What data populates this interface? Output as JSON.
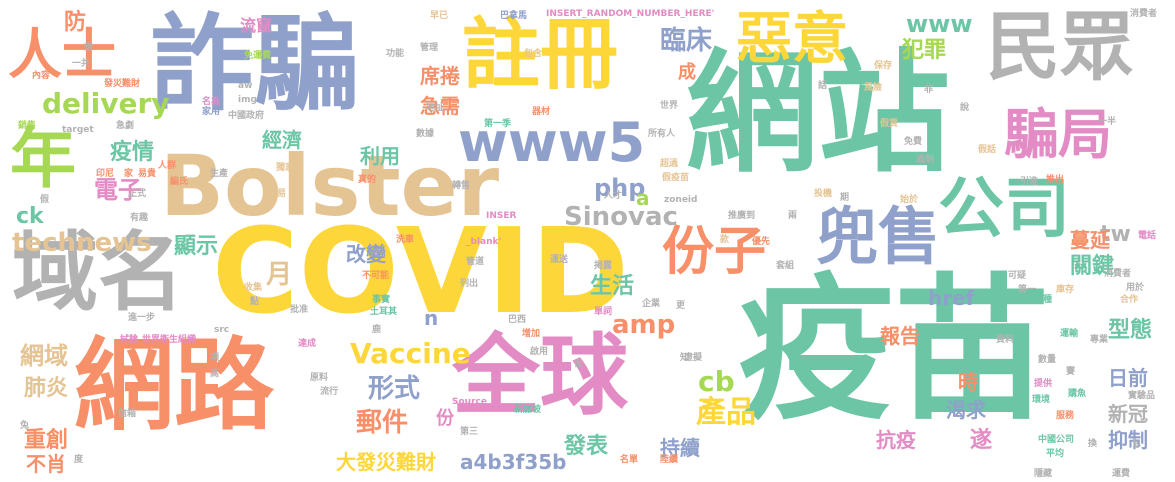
{
  "palette": {
    "teal": "#6cc6a6",
    "blue": "#8fa0cb",
    "yellow": "#fdd739",
    "orange": "#f78f69",
    "gray": "#b2b2b2",
    "pink": "#e38bc4",
    "green": "#a6d854",
    "tan": "#e5c494"
  },
  "words": [
    {
      "text": "疫苗",
      "color": "teal"
    },
    {
      "text": "網站",
      "color": "teal"
    },
    {
      "text": "COVID",
      "color": "yellow"
    },
    {
      "text": "Bolster",
      "color": "tan"
    },
    {
      "text": "詐騙",
      "color": "blue"
    },
    {
      "text": "網路",
      "color": "orange"
    },
    {
      "text": "全球",
      "color": "pink"
    },
    {
      "text": "註冊",
      "color": "yellow"
    },
    {
      "text": "民眾",
      "color": "gray"
    },
    {
      "text": "域名",
      "color": "gray"
    },
    {
      "text": "兜售",
      "color": "blue"
    },
    {
      "text": "公司",
      "color": "teal"
    },
    {
      "text": "份子",
      "color": "orange"
    },
    {
      "text": "騙局",
      "color": "pink"
    },
    {
      "text": "惡意",
      "color": "yellow"
    },
    {
      "text": "人士",
      "color": "orange"
    },
    {
      "text": "年",
      "color": "green"
    },
    {
      "text": "www5",
      "color": "blue"
    },
    {
      "text": "Vaccine",
      "color": "yellow"
    },
    {
      "text": "Sinovac",
      "color": "gray"
    },
    {
      "text": "technews",
      "color": "tan"
    },
    {
      "text": "delivery",
      "color": "green"
    },
    {
      "text": "臨床",
      "color": "blue"
    },
    {
      "text": "www",
      "color": "teal"
    },
    {
      "text": "犯罪",
      "color": "green"
    },
    {
      "text": "疫情",
      "color": "teal"
    },
    {
      "text": "電子",
      "color": "pink"
    },
    {
      "text": "形式",
      "color": "blue"
    },
    {
      "text": "郵件",
      "color": "orange"
    },
    {
      "text": "產品",
      "color": "yellow"
    },
    {
      "text": "發表",
      "color": "teal"
    },
    {
      "text": "持續",
      "color": "blue"
    },
    {
      "text": "大發災難財",
      "color": "yellow"
    },
    {
      "text": "a4b3f35b",
      "color": "blue"
    },
    {
      "text": "抗疫",
      "color": "pink"
    },
    {
      "text": "渴求",
      "color": "blue"
    },
    {
      "text": "報告",
      "color": "orange"
    },
    {
      "text": "型態",
      "color": "teal"
    },
    {
      "text": "關鍵",
      "color": "teal"
    },
    {
      "text": "日前",
      "color": "blue"
    },
    {
      "text": "新冠",
      "color": "gray"
    },
    {
      "text": "抑制",
      "color": "blue"
    },
    {
      "text": "網域",
      "color": "tan"
    },
    {
      "text": "肺炎",
      "color": "tan"
    },
    {
      "text": "重創",
      "color": "orange"
    },
    {
      "text": "不肖",
      "color": "orange"
    },
    {
      "text": "生活",
      "color": "teal"
    },
    {
      "text": "改變",
      "color": "blue"
    },
    {
      "text": "利用",
      "color": "teal"
    },
    {
      "text": "經濟",
      "color": "teal"
    },
    {
      "text": "顯示",
      "color": "teal"
    },
    {
      "text": "席捲",
      "color": "orange"
    },
    {
      "text": "急需",
      "color": "orange"
    },
    {
      "text": "流竄",
      "color": "pink"
    },
    {
      "text": "防",
      "color": "orange"
    },
    {
      "text": "php",
      "color": "blue"
    },
    {
      "text": "amp",
      "color": "orange"
    },
    {
      "text": "cb",
      "color": "green"
    },
    {
      "text": "ck",
      "color": "teal"
    },
    {
      "text": "tw",
      "color": "gray"
    },
    {
      "text": "href",
      "color": "blue"
    },
    {
      "text": "月",
      "color": "tan"
    },
    {
      "text": "成",
      "color": "orange"
    },
    {
      "text": "遂",
      "color": "pink"
    },
    {
      "text": "蔓延",
      "color": "orange"
    },
    {
      "text": "時",
      "color": "orange"
    },
    {
      "text": "份",
      "color": "pink"
    },
    {
      "text": "a",
      "color": "green"
    },
    {
      "text": "n",
      "color": "blue"
    },
    {
      "text": "INSERT_RANDOM_NUMBER_HERE'",
      "color": "pink"
    },
    {
      "text": "巴拿馬",
      "color": "blue"
    },
    {
      "text": "早已",
      "color": "tan"
    },
    {
      "text": "消費者",
      "color": "gray"
    },
    {
      "text": "保存",
      "color": "tan"
    },
    {
      "text": "風險",
      "color": "tan"
    },
    {
      "text": "管理",
      "color": "gray"
    },
    {
      "text": "包含",
      "color": "tan"
    },
    {
      "text": "一共",
      "color": "gray"
    },
    {
      "text": "發災難財",
      "color": "orange"
    },
    {
      "text": "內容",
      "color": "orange"
    },
    {
      "text": "想",
      "color": "gray"
    },
    {
      "text": "免運費",
      "color": "green"
    },
    {
      "text": "名為",
      "color": "pink"
    },
    {
      "text": "家用",
      "color": "blue"
    },
    {
      "text": "銷售",
      "color": "green"
    },
    {
      "text": "target",
      "color": "gray"
    },
    {
      "text": "急劇",
      "color": "gray"
    },
    {
      "text": "第一季",
      "color": "teal"
    },
    {
      "text": "所有人",
      "color": "gray"
    },
    {
      "text": "中國政府",
      "color": "gray"
    },
    {
      "text": "世界",
      "color": "gray"
    },
    {
      "text": "器材",
      "color": "orange"
    },
    {
      "text": "地址",
      "color": "gray"
    },
    {
      "text": "數據",
      "color": "gray"
    },
    {
      "text": "功能",
      "color": "gray"
    },
    {
      "text": "人群",
      "color": "orange"
    },
    {
      "text": "編氏",
      "color": "orange"
    },
    {
      "text": "印尼",
      "color": "orange"
    },
    {
      "text": "家",
      "color": "orange"
    },
    {
      "text": "易貴",
      "color": "orange"
    },
    {
      "text": "生產",
      "color": "gray"
    },
    {
      "text": "獨家",
      "color": "tan"
    },
    {
      "text": "正式",
      "color": "gray"
    },
    {
      "text": "交易",
      "color": "tan"
    },
    {
      "text": "真的",
      "color": "orange"
    },
    {
      "text": "轉售",
      "color": "gray"
    },
    {
      "text": "超過",
      "color": "tan"
    },
    {
      "text": "假疫苗",
      "color": "tan"
    },
    {
      "text": "人才",
      "color": "gray"
    },
    {
      "text": "zoneid",
      "color": "gray"
    },
    {
      "text": "有趣",
      "color": "gray"
    },
    {
      "text": "假",
      "color": "gray"
    },
    {
      "text": "INSER",
      "color": "pink"
    },
    {
      "text": "推廣到",
      "color": "gray"
    },
    {
      "text": "兩",
      "color": "gray"
    },
    {
      "text": "優先",
      "color": "orange"
    },
    {
      "text": "款",
      "color": "tan"
    },
    {
      "text": "掲露",
      "color": "gray"
    },
    {
      "text": "洗車",
      "color": "orange"
    },
    {
      "text": "運送",
      "color": "gray"
    },
    {
      "text": "管道",
      "color": "gray"
    },
    {
      "text": "_blank'",
      "color": "pink"
    },
    {
      "text": "套組",
      "color": "gray"
    },
    {
      "text": "不可能",
      "color": "orange"
    },
    {
      "text": "收集",
      "color": "tan"
    },
    {
      "text": "點",
      "color": "gray"
    },
    {
      "text": "事實",
      "color": "teal"
    },
    {
      "text": "土耳其",
      "color": "teal"
    },
    {
      "text": "列出",
      "color": "gray"
    },
    {
      "text": "批准",
      "color": "gray"
    },
    {
      "text": "src",
      "color": "gray"
    },
    {
      "text": "單詞",
      "color": "pink"
    },
    {
      "text": "巴西",
      "color": "gray"
    },
    {
      "text": "企業",
      "color": "gray"
    },
    {
      "text": "更",
      "color": "gray"
    },
    {
      "text": "增加",
      "color": "orange"
    },
    {
      "text": "啟用",
      "color": "gray"
    },
    {
      "text": "進一步",
      "color": "gray"
    },
    {
      "text": "試驗",
      "color": "pink"
    },
    {
      "text": "世界衛生組織",
      "color": "pink"
    },
    {
      "text": "項",
      "color": "gray"
    },
    {
      "text": "高",
      "color": "gray"
    },
    {
      "text": "達成",
      "color": "pink"
    },
    {
      "text": "原料",
      "color": "gray"
    },
    {
      "text": "流行",
      "color": "gray"
    },
    {
      "text": "信箱",
      "color": "gray"
    },
    {
      "text": "Source",
      "color": "pink"
    },
    {
      "text": "新加坡",
      "color": "teal"
    },
    {
      "text": "第三",
      "color": "gray"
    },
    {
      "text": "名單",
      "color": "orange"
    },
    {
      "text": "陸續",
      "color": "orange"
    },
    {
      "text": "中國公司",
      "color": "teal"
    },
    {
      "text": "平均",
      "color": "teal"
    },
    {
      "text": "換",
      "color": "gray"
    },
    {
      "text": "隱藏",
      "color": "gray"
    },
    {
      "text": "運費",
      "color": "gray"
    },
    {
      "text": "專業",
      "color": "gray"
    },
    {
      "text": "實驗品",
      "color": "gray"
    },
    {
      "text": "數量",
      "color": "gray"
    },
    {
      "text": "資料",
      "color": "gray"
    },
    {
      "text": "運輸",
      "color": "teal"
    },
    {
      "text": "提供",
      "color": "pink"
    },
    {
      "text": "服務",
      "color": "orange"
    },
    {
      "text": "環境",
      "color": "teal"
    },
    {
      "text": "購魚",
      "color": "teal"
    },
    {
      "text": "可疑",
      "color": "gray"
    },
    {
      "text": "接種",
      "color": "teal"
    },
    {
      "text": "第一",
      "color": "gray"
    },
    {
      "text": "庫存",
      "color": "tan"
    },
    {
      "text": "合作",
      "color": "tan"
    },
    {
      "text": "用於",
      "color": "gray"
    },
    {
      "text": "消費者",
      "color": "gray"
    },
    {
      "text": "電話",
      "color": "pink"
    },
    {
      "text": "推出",
      "color": "orange"
    },
    {
      "text": "引進",
      "color": "gray"
    },
    {
      "text": "假話",
      "color": "tan"
    },
    {
      "text": "過制",
      "color": "gray"
    },
    {
      "text": "假貨",
      "color": "tan"
    },
    {
      "text": "始於",
      "color": "tan"
    },
    {
      "text": "免費",
      "color": "gray"
    },
    {
      "text": "期",
      "color": "gray"
    },
    {
      "text": "投機",
      "color": "tan"
    },
    {
      "text": "非",
      "color": "gray"
    },
    {
      "text": "話",
      "color": "gray"
    },
    {
      "text": "說",
      "color": "gray"
    },
    {
      "text": "一半",
      "color": "gray"
    },
    {
      "text": "aw",
      "color": "gray"
    },
    {
      "text": "img",
      "color": "gray"
    },
    {
      "text": "知",
      "color": "gray"
    },
    {
      "text": "虛擬",
      "color": "gray"
    },
    {
      "text": "兔",
      "color": "gray"
    },
    {
      "text": "度",
      "color": "gray"
    },
    {
      "text": "鹿",
      "color": "gray"
    },
    {
      "text": "自",
      "color": "gray"
    },
    {
      "text": "包",
      "color": "gray"
    },
    {
      "text": "賽",
      "color": "gray"
    }
  ]
}
